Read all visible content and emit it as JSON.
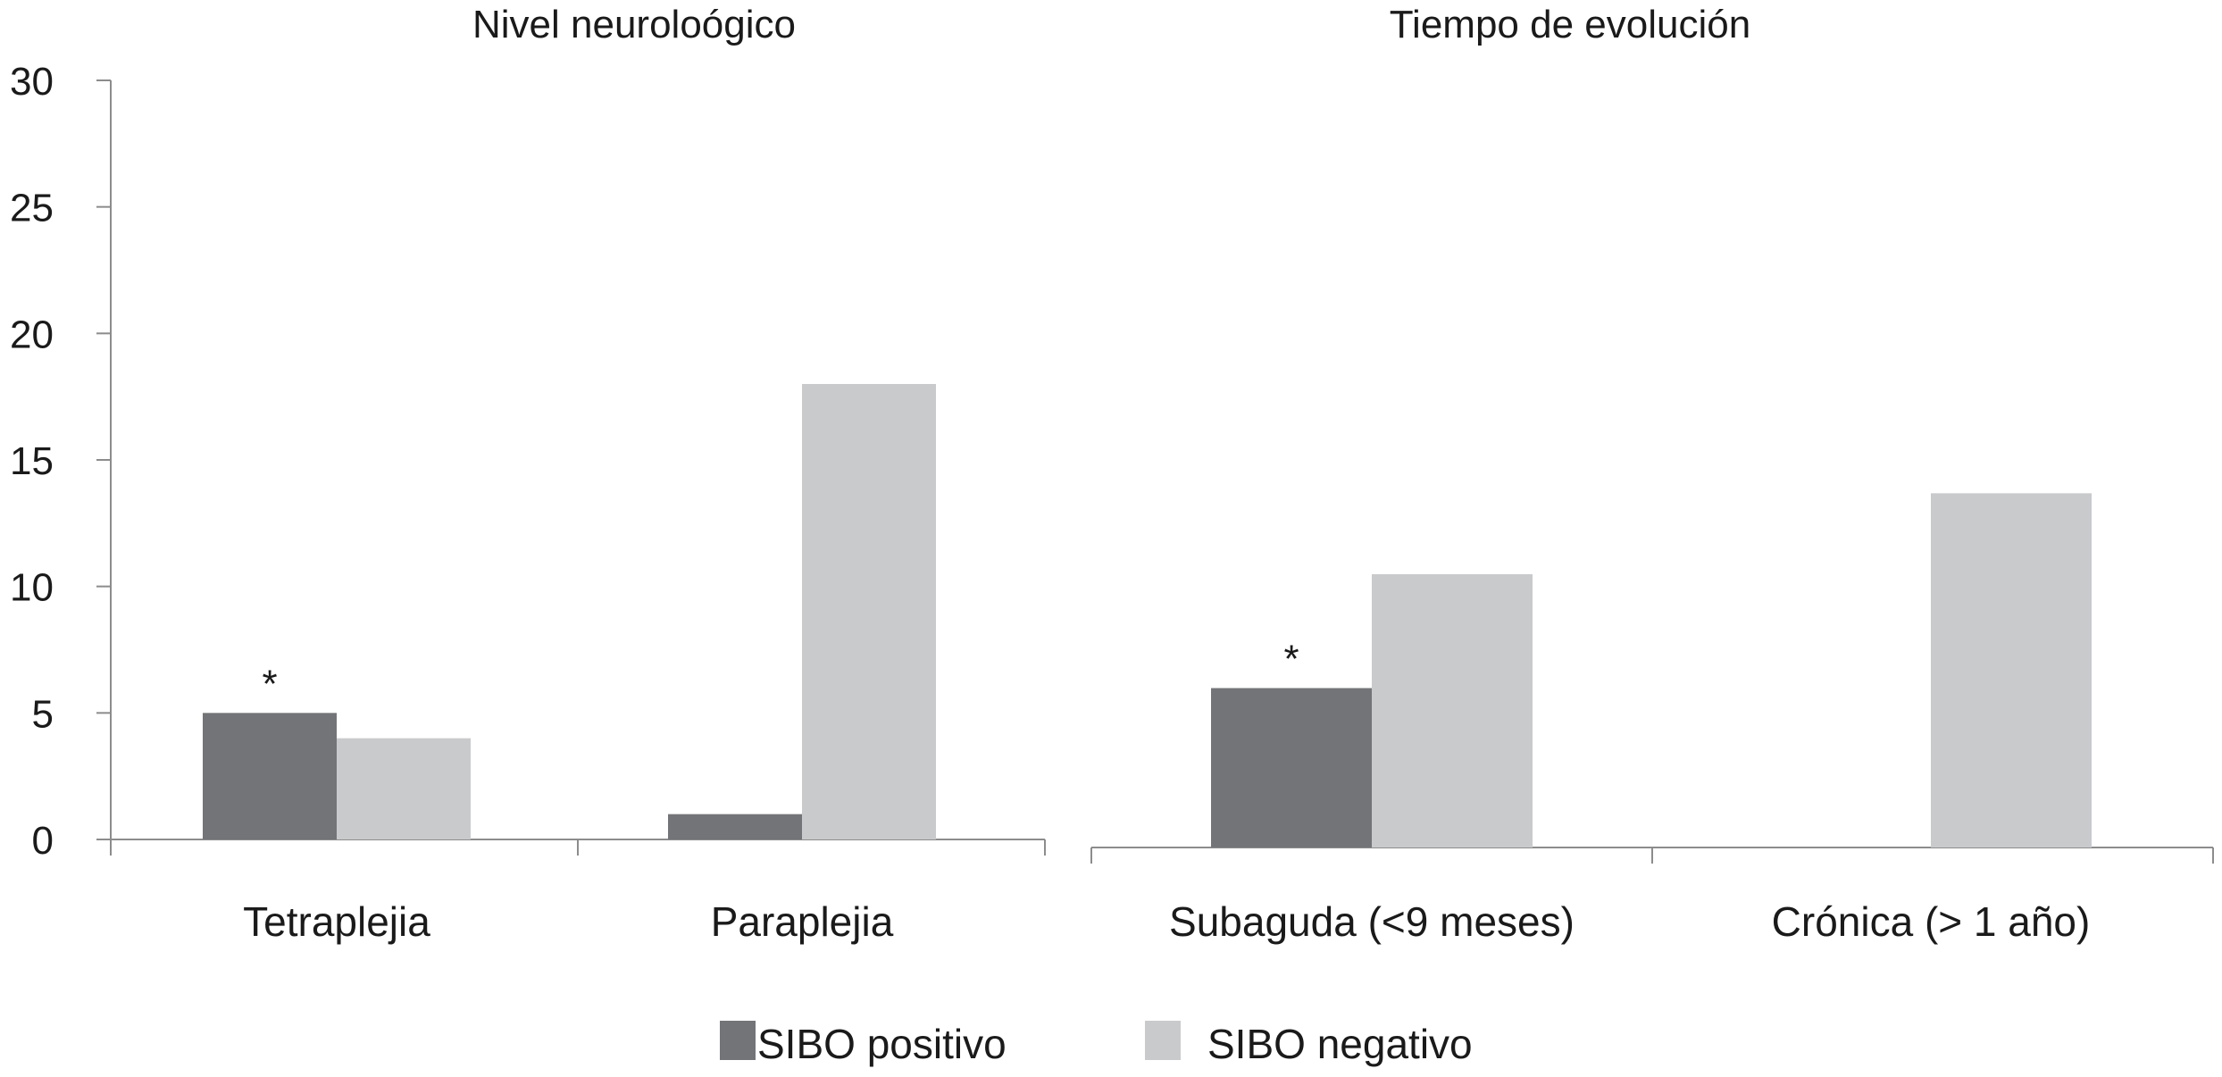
{
  "colors": {
    "sibo_positivo": "#737477",
    "sibo_negativo": "#c9cacc",
    "axis": "#8c8c8c",
    "text": "#1a1a1a"
  },
  "legend": {
    "placement": "bottom-center",
    "items": [
      {
        "label": "SIBO positivo",
        "color_key": "sibo_positivo"
      },
      {
        "label": "SIBO negativo",
        "color_key": "sibo_negativo"
      }
    ]
  },
  "chart_data": [
    {
      "type": "bar",
      "title": "Nivel neuroloógico",
      "categories": [
        "Tetraplejia",
        "Paraplejia"
      ],
      "series": [
        {
          "name": "SIBO positivo",
          "values": [
            5,
            1
          ]
        },
        {
          "name": "SIBO negativo",
          "values": [
            4,
            18
          ]
        }
      ],
      "annotations": [
        {
          "text": "*",
          "category": "Tetraplejia",
          "series": "SIBO positivo"
        }
      ],
      "ylim": [
        0,
        30
      ],
      "yticks": [
        0,
        5,
        10,
        15,
        20,
        25,
        30
      ],
      "grid": false
    },
    {
      "type": "bar",
      "title": "Tiempo de evolución",
      "categories": [
        "Subaguda (<9 meses)",
        "Crónica (> 1 año)"
      ],
      "series": [
        {
          "name": "SIBO positivo",
          "values": [
            6.3,
            0
          ]
        },
        {
          "name": "SIBO negativo",
          "values": [
            10.8,
            14
          ]
        }
      ],
      "annotations": [
        {
          "text": "*",
          "category": "Subaguda (<9 meses)",
          "series": "SIBO positivo"
        }
      ],
      "ylim": [
        0,
        30
      ],
      "grid": false
    }
  ]
}
